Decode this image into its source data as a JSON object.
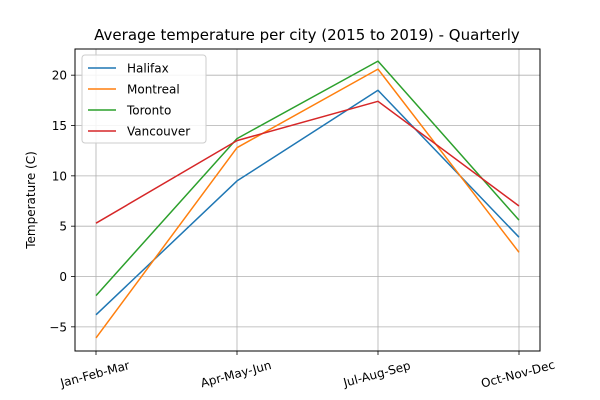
{
  "chart_data": {
    "type": "line",
    "title": "Average temperature per city (2015 to 2019) - Quarterly",
    "xlabel": "",
    "ylabel": "Temperature (C)",
    "categories": [
      "Jan-Feb-Mar",
      "Apr-May-Jun",
      "Jul-Aug-Sep",
      "Oct-Nov-Dec"
    ],
    "ylim": [
      -7.4,
      22.6
    ],
    "yticks": [
      -5,
      0,
      5,
      10,
      15,
      20
    ],
    "ytick_labels": [
      "−5",
      "0",
      "5",
      "10",
      "15",
      "20"
    ],
    "grid": true,
    "legend_position": "top-left",
    "series": [
      {
        "name": "Halifax",
        "color": "#1f77b4",
        "values": [
          -3.8,
          9.5,
          18.5,
          3.9
        ]
      },
      {
        "name": "Montreal",
        "color": "#ff7f0e",
        "values": [
          -6.1,
          12.8,
          20.6,
          2.4
        ]
      },
      {
        "name": "Toronto",
        "color": "#2ca02c",
        "values": [
          -1.9,
          13.7,
          21.4,
          5.6
        ]
      },
      {
        "name": "Vancouver",
        "color": "#d62728",
        "values": [
          5.3,
          13.5,
          17.4,
          7.0
        ]
      }
    ]
  }
}
